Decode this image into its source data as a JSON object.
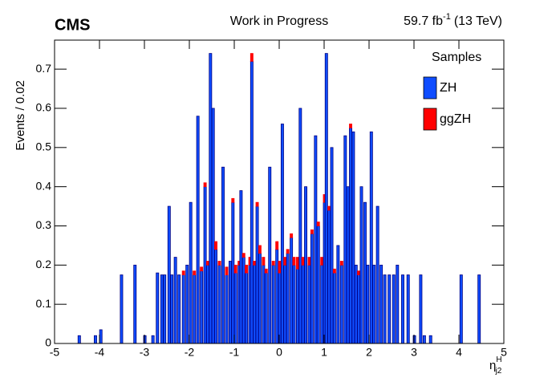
{
  "chart_data": {
    "type": "histogram",
    "experiment": "CMS",
    "subtitle": "Work in Progress",
    "lumi": "59.7 fb",
    "lumi_sup": "-1",
    "energy": "(13 TeV)",
    "y_label": "Events / 0.02",
    "x_label": "η",
    "x_label_sup": "H",
    "x_label_sub": "j2",
    "legend_title": "Samples",
    "legend_position": "top-right",
    "bin_width": 0.02,
    "x": [
      -4.46,
      -4.1,
      -3.98,
      -3.52,
      -3.22,
      -3.0,
      -2.82,
      -2.72,
      -2.62,
      -2.56,
      -2.46,
      -2.4,
      -2.32,
      -2.24,
      -2.14,
      -2.06,
      -1.98,
      -1.9,
      -1.82,
      -1.74,
      -1.66,
      -1.6,
      -1.54,
      -1.48,
      -1.42,
      -1.34,
      -1.26,
      -1.18,
      -1.1,
      -1.04,
      -0.98,
      -0.9,
      -0.86,
      -0.8,
      -0.74,
      -0.66,
      -0.62,
      -0.56,
      -0.5,
      -0.44,
      -0.36,
      -0.3,
      -0.22,
      -0.14,
      -0.06,
      0.0,
      0.06,
      0.12,
      0.18,
      0.26,
      0.32,
      0.4,
      0.46,
      0.52,
      0.58,
      0.66,
      0.72,
      0.8,
      0.86,
      0.94,
      1.0,
      1.04,
      1.1,
      1.16,
      1.22,
      1.3,
      1.38,
      1.46,
      1.52,
      1.58,
      1.64,
      1.7,
      1.76,
      1.82,
      1.9,
      1.96,
      2.04,
      2.1,
      2.18,
      2.26,
      2.34,
      2.44,
      2.54,
      2.62,
      2.74,
      2.86,
      3.0,
      3.14,
      3.22,
      3.36,
      4.04,
      4.44
    ],
    "series": [
      {
        "name": "ZH",
        "color": "#0f4dff",
        "values": [
          0.02,
          0.02,
          0.035,
          0.175,
          0.2,
          0.02,
          0.02,
          0.18,
          0.175,
          0.175,
          0.35,
          0.175,
          0.22,
          0.175,
          0.175,
          0.2,
          0.36,
          0.175,
          0.58,
          0.185,
          0.4,
          0.2,
          0.74,
          0.6,
          0.24,
          0.2,
          0.45,
          0.175,
          0.21,
          0.36,
          0.18,
          0.2,
          0.39,
          0.22,
          0.18,
          0.2,
          0.72,
          0.2,
          0.35,
          0.23,
          0.2,
          0.18,
          0.45,
          0.2,
          0.24,
          0.18,
          0.56,
          0.2,
          0.23,
          0.27,
          0.2,
          0.19,
          0.6,
          0.2,
          0.4,
          0.2,
          0.28,
          0.53,
          0.3,
          0.2,
          0.36,
          0.74,
          0.34,
          0.5,
          0.18,
          0.25,
          0.2,
          0.53,
          0.4,
          0.55,
          0.54,
          0.2,
          0.175,
          0.4,
          0.36,
          0.2,
          0.54,
          0.2,
          0.35,
          0.2,
          0.175,
          0.175,
          0.175,
          0.2,
          0.175,
          0.175,
          0.02,
          0.175,
          0.02,
          0.02,
          0.175,
          0.175
        ]
      },
      {
        "name": "ggZH",
        "color": "#ff0000",
        "values": [
          0,
          0,
          0,
          0,
          0,
          0,
          0,
          0,
          0,
          0,
          0,
          0,
          0,
          0,
          0.01,
          0,
          0,
          0.01,
          0,
          0.01,
          0.01,
          0.01,
          0,
          0,
          0.02,
          0.01,
          0,
          0.02,
          0,
          0.01,
          0.02,
          0.01,
          0,
          0.01,
          0.02,
          0.02,
          0.02,
          0.01,
          0.01,
          0.02,
          0.02,
          0.01,
          0,
          0.01,
          0.02,
          0.03,
          0,
          0.02,
          0.01,
          0.01,
          0.02,
          0.03,
          0,
          0.02,
          0,
          0.02,
          0.01,
          0,
          0.01,
          0.02,
          0.02,
          0,
          0.01,
          0,
          0.01,
          0,
          0.01,
          0,
          0,
          0.01,
          0,
          0,
          0.01,
          0,
          0,
          0,
          0,
          0,
          0,
          0,
          0,
          0,
          0,
          0,
          0,
          0,
          0,
          0,
          0,
          0,
          0,
          0
        ]
      }
    ],
    "xlim": [
      -5,
      5
    ],
    "ylim": [
      0,
      0.774
    ],
    "xticks": [
      -5,
      -4,
      -3,
      -2,
      -1,
      0,
      1,
      2,
      3,
      4,
      5
    ],
    "yticks": [
      0,
      0.1,
      0.2,
      0.3,
      0.4,
      0.5,
      0.6,
      0.7
    ]
  }
}
